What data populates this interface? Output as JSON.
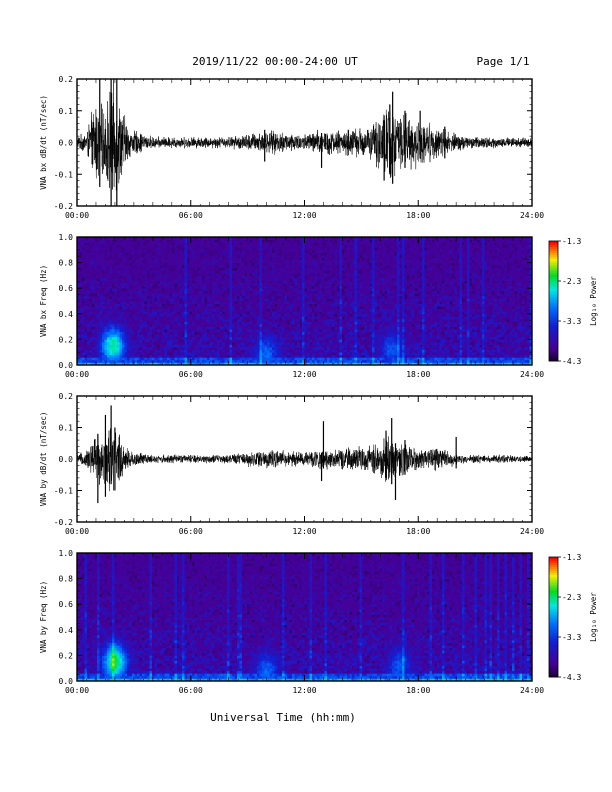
{
  "header": {
    "date_range": "2019/11/22  00:00-24:00 UT",
    "page": "Page 1/1"
  },
  "xlabel": "Universal Time (hh:mm)",
  "x_ticks": [
    "00:00",
    "06:00",
    "12:00",
    "18:00",
    "24:00"
  ],
  "chart_data": [
    {
      "type": "line",
      "ylabel": "VNA bx dB/dt (nT/sec)",
      "xlim": [
        0,
        24
      ],
      "ylim": [
        -0.2,
        0.2
      ],
      "y_ticks": [
        "0.2",
        "0.1",
        "0.0",
        "-0.1",
        "-0.2"
      ],
      "envelope": {
        "x_hours": [
          0,
          0.5,
          1.0,
          1.4,
          1.8,
          2.0,
          2.3,
          2.8,
          4,
          6,
          8,
          9,
          9.8,
          10.5,
          12,
          13.0,
          13.5,
          14.5,
          15.5,
          16.0,
          16.4,
          16.8,
          17.5,
          18.0,
          18.5,
          19.0,
          19.4,
          20,
          21,
          22,
          24
        ],
        "amplitude": [
          0.02,
          0.04,
          0.15,
          0.12,
          0.2,
          0.2,
          0.14,
          0.05,
          0.02,
          0.02,
          0.02,
          0.03,
          0.04,
          0.04,
          0.03,
          0.05,
          0.04,
          0.05,
          0.06,
          0.1,
          0.15,
          0.11,
          0.1,
          0.08,
          0.07,
          0.06,
          0.05,
          0.03,
          0.02,
          0.02,
          0.015
        ]
      },
      "spikes": [
        {
          "hour": 1.2,
          "min": -0.14,
          "max": 0.2
        },
        {
          "hour": 1.8,
          "min": -0.21,
          "max": 0.22
        },
        {
          "hour": 2.1,
          "min": -0.21,
          "max": 0.21
        },
        {
          "hour": 9.9,
          "min": -0.06,
          "max": 0.04
        },
        {
          "hour": 12.9,
          "min": -0.08,
          "max": 0.03
        },
        {
          "hour": 16.2,
          "min": -0.12,
          "max": 0.07
        },
        {
          "hour": 16.5,
          "min": -0.1,
          "max": 0.12
        },
        {
          "hour": 16.65,
          "min": -0.13,
          "max": 0.16
        },
        {
          "hour": 17.3,
          "min": -0.08,
          "max": 0.1
        },
        {
          "hour": 18.1,
          "min": -0.05,
          "max": 0.1
        },
        {
          "hour": 19.4,
          "min": -0.05,
          "max": 0.05
        }
      ]
    },
    {
      "type": "heatmap",
      "ylabel": "VNA bx Freq (Hz)",
      "xlim": [
        0,
        24
      ],
      "ylim": [
        0.0,
        1.0
      ],
      "y_ticks": [
        "1.0",
        "0.8",
        "0.6",
        "0.4",
        "0.2",
        "0.0"
      ],
      "colorbar": {
        "label": "Log₁₀ Power",
        "ticks": [
          "-1.3",
          "-2.3",
          "-3.3",
          "-4.3"
        ],
        "range": [
          -4.3,
          -1.3
        ]
      },
      "hotspots": [
        {
          "hour": 1.9,
          "freq": 0.15,
          "power": -2.3
        },
        {
          "hour": 10.0,
          "freq": 0.08,
          "power": -3.0
        },
        {
          "hour": 16.6,
          "freq": 0.12,
          "power": -3.1
        }
      ]
    },
    {
      "type": "line",
      "ylabel": "VNA by dB/dt (nT/sec)",
      "xlim": [
        0,
        24
      ],
      "ylim": [
        -0.2,
        0.2
      ],
      "y_ticks": [
        "0.2",
        "0.1",
        "0.0",
        "-0.1",
        "-0.2"
      ],
      "envelope": {
        "x_hours": [
          0,
          0.5,
          1.0,
          1.4,
          1.8,
          2.0,
          2.3,
          2.8,
          4,
          6,
          8,
          9,
          9.8,
          10.5,
          12,
          13.0,
          13.5,
          14.5,
          15.5,
          16.0,
          16.4,
          16.8,
          17.5,
          18.0,
          18.5,
          19.0,
          19.4,
          20,
          21,
          22,
          24
        ],
        "amplitude": [
          0.015,
          0.03,
          0.1,
          0.08,
          0.13,
          0.12,
          0.08,
          0.03,
          0.015,
          0.015,
          0.015,
          0.025,
          0.035,
          0.03,
          0.025,
          0.04,
          0.03,
          0.04,
          0.05,
          0.06,
          0.09,
          0.07,
          0.05,
          0.04,
          0.04,
          0.04,
          0.04,
          0.02,
          0.015,
          0.015,
          0.01
        ]
      },
      "spikes": [
        {
          "hour": 1.1,
          "min": -0.14,
          "max": 0.08
        },
        {
          "hour": 1.5,
          "min": -0.12,
          "max": 0.14
        },
        {
          "hour": 1.8,
          "min": -0.08,
          "max": 0.17
        },
        {
          "hour": 2.0,
          "min": -0.1,
          "max": 0.1
        },
        {
          "hour": 12.9,
          "min": -0.07,
          "max": 0.02
        },
        {
          "hour": 13.0,
          "min": -0.03,
          "max": 0.12
        },
        {
          "hour": 16.3,
          "min": -0.06,
          "max": 0.09
        },
        {
          "hour": 16.6,
          "min": -0.08,
          "max": 0.13
        },
        {
          "hour": 16.8,
          "min": -0.13,
          "max": 0.05
        },
        {
          "hour": 17.3,
          "min": -0.05,
          "max": 0.06
        },
        {
          "hour": 20.0,
          "min": -0.03,
          "max": 0.07
        }
      ]
    },
    {
      "type": "heatmap",
      "ylabel": "VNA by Freq (Hz)",
      "xlim": [
        0,
        24
      ],
      "ylim": [
        0.0,
        1.0
      ],
      "y_ticks": [
        "1.0",
        "0.8",
        "0.6",
        "0.4",
        "0.2",
        "0.0"
      ],
      "colorbar": {
        "label": "Log₁₀ Power",
        "ticks": [
          "-1.3",
          "-2.3",
          "-3.3",
          "-4.3"
        ],
        "range": [
          -4.3,
          -1.3
        ]
      },
      "hotspots": [
        {
          "hour": 2.0,
          "freq": 0.15,
          "power": -2.2
        },
        {
          "hour": 10.0,
          "freq": 0.08,
          "power": -3.0
        },
        {
          "hour": 17.0,
          "freq": 0.12,
          "power": -3.1
        }
      ]
    }
  ]
}
